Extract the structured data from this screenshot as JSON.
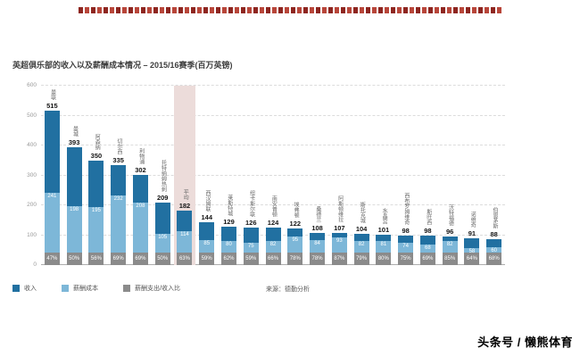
{
  "page": {
    "title": "英超俱乐部的收入以及薪酬成本情况 – 2015/16赛季(百万英镑)",
    "source": "来源：德勤分析",
    "watermark": "头条号 / 懒熊体育"
  },
  "legend": [
    {
      "label": "收入",
      "color": "#2170a1"
    },
    {
      "label": "薪酬成本",
      "color": "#7db7d8"
    },
    {
      "label": "薪酬支出/收入比",
      "color": "#8b8b8b"
    }
  ],
  "colors": {
    "revenue_bar": "#2170a1",
    "wages_bar": "#7db7d8",
    "ratio_box": "#8b8b8b",
    "average_highlight": "#ecdcda",
    "deco_red_dark": "#8e2620",
    "deco_red_light": "#b8463a",
    "revenue_label": "#141414",
    "inner_label": "#ffffff"
  },
  "chart_data": {
    "type": "bar",
    "title": "英超俱乐部的收入以及薪酬成本情况 – 2015/16赛季(百万英镑)",
    "ylim": [
      0,
      600
    ],
    "yticks": [
      0,
      100,
      200,
      300,
      400,
      500,
      600
    ],
    "grid": true,
    "legend_position": "bottom",
    "highlighted_category": "平均",
    "categories": [
      "曼联",
      "曼城",
      "阿森纳",
      "切尔西",
      "利物浦",
      "托特纳姆热刺",
      "平均",
      "西汉姆联",
      "莱斯特城",
      "纽卡斯尔联",
      "南安普顿",
      "埃弗顿",
      "桑德兰",
      "阿斯顿维拉",
      "斯托克城",
      "水晶宫",
      "西布罗姆维奇",
      "斯旺西",
      "沃特福德",
      "诺维奇",
      "伯恩茅斯"
    ],
    "series": [
      {
        "name": "收入",
        "values": [
          515,
          393,
          350,
          335,
          302,
          209,
          182,
          144,
          129,
          126,
          124,
          122,
          108,
          107,
          104,
          101,
          98,
          98,
          96,
          91,
          88
        ]
      },
      {
        "name": "薪酬成本",
        "values": [
          241,
          198,
          195,
          232,
          208,
          105,
          114,
          85,
          80,
          75,
          82,
          95,
          84,
          93,
          82,
          81,
          74,
          68,
          82,
          58,
          60
        ]
      },
      {
        "name": "薪酬支出/收入比",
        "values": [
          "47%",
          "50%",
          "56%",
          "69%",
          "69%",
          "50%",
          "63%",
          "59%",
          "62%",
          "59%",
          "66%",
          "78%",
          "78%",
          "87%",
          "79%",
          "80%",
          "75%",
          "69%",
          "85%",
          "64%",
          "68%"
        ]
      }
    ],
    "source": "来源：德勤分析"
  }
}
